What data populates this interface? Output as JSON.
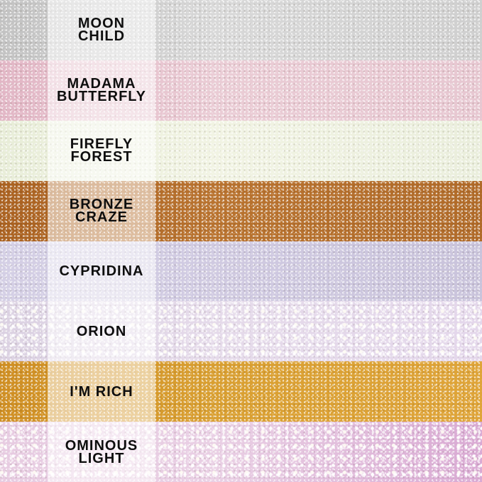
{
  "image": {
    "description": "Glitter shade swatch chart with eight horizontal texture bands, each labeled on a translucent white strip"
  },
  "label_strip": {
    "background": "rgba(255,255,255,0.55)",
    "text_color": "#0e0e0e"
  },
  "swatches": [
    {
      "name": "MOON CHILD",
      "lines": [
        "MOON",
        "CHILD"
      ],
      "texture": "fine",
      "colors": {
        "left": "#c2c2c2",
        "mid": "#d8d8d8",
        "right": "#cfcfcf"
      }
    },
    {
      "name": "MADAMA BUTTERFLY",
      "lines": [
        "MADAMA",
        "BUTTERFLY"
      ],
      "texture": "fine",
      "colors": {
        "left": "#e2b6c5",
        "mid": "#eaccd5",
        "right": "#e7c7d1"
      }
    },
    {
      "name": "FIREFLY FOREST",
      "lines": [
        "FIREFLY",
        "FOREST"
      ],
      "texture": "fine",
      "colors": {
        "left": "#e8edd8",
        "mid": "#f1f3e3",
        "right": "#eaeedc"
      }
    },
    {
      "name": "BRONZE CRAZE",
      "lines": [
        "BRONZE",
        "CRAZE"
      ],
      "texture": "fine",
      "colors": {
        "left": "#aa6120",
        "mid": "#b9732f",
        "right": "#b06a28"
      }
    },
    {
      "name": "CYPRIDINA",
      "lines": [
        "CYPRIDINA"
      ],
      "texture": "fine",
      "colors": {
        "left": "#d4cfe5",
        "mid": "#d0cae1",
        "right": "#c9c3db"
      }
    },
    {
      "name": "ORION",
      "lines": [
        "ORION"
      ],
      "texture": "chunky",
      "colors": {
        "left": "#dbd1e2",
        "mid": "#e5daea",
        "right": "#e4d7eb"
      }
    },
    {
      "name": "I'M RICH",
      "lines": [
        "I'M RICH"
      ],
      "texture": "fine",
      "colors": {
        "left": "#cf8e22",
        "mid": "#d99f31",
        "right": "#dfa438"
      }
    },
    {
      "name": "OMINOUS LIGHT",
      "lines": [
        "OMINOUS",
        "LIGHT"
      ],
      "texture": "chunky",
      "colors": {
        "left": "#e7cbe1",
        "mid": "#e9cfe4",
        "right": "#d9a9d3"
      }
    }
  ]
}
